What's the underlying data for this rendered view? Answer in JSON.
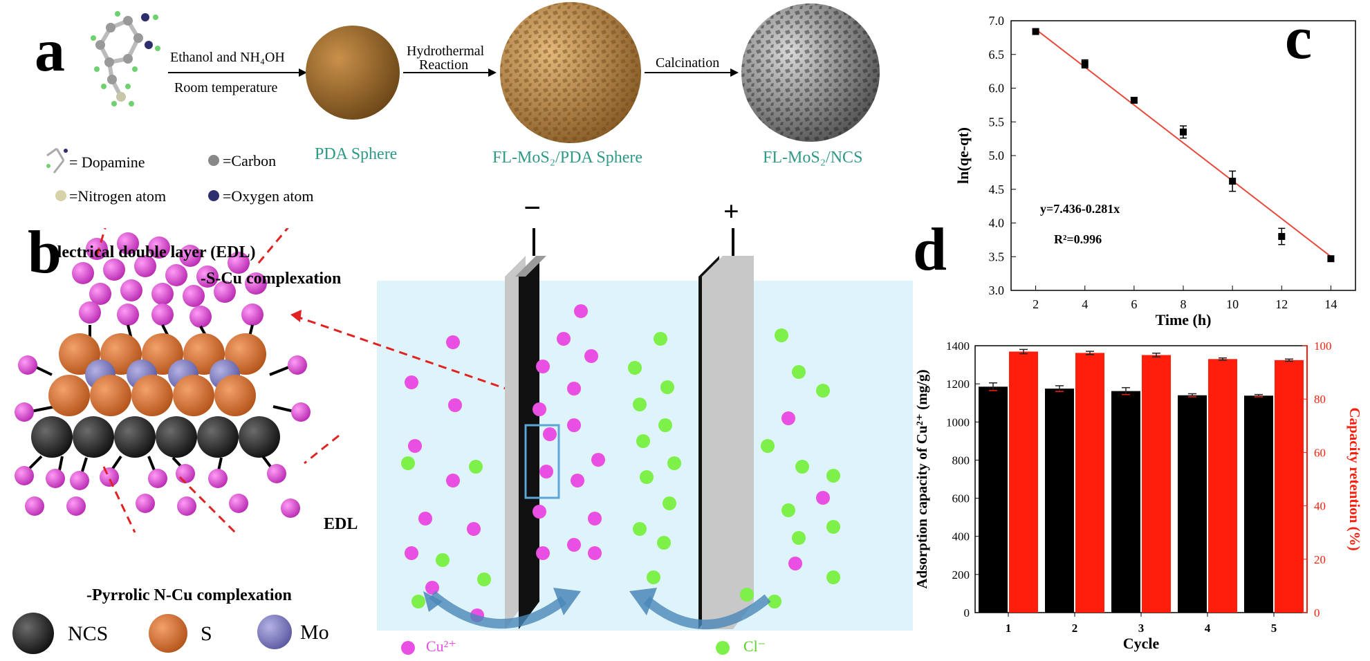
{
  "panels": {
    "a": "a",
    "b": "b",
    "c": "c",
    "d": "d"
  },
  "scheme_a": {
    "step1_top": "Ethanol and NH₄OH",
    "step1_bottom": "Room temperature",
    "step2_line1": "Hydrothermal",
    "step2_line2": "Reaction",
    "step3": "Calcination",
    "sphere1": "PDA Sphere",
    "sphere2": "FL-MoS₂/PDA Sphere",
    "sphere3": "FL-MoS₂/NCS",
    "legend": {
      "dopamine": "= Dopamine",
      "carbon": "=Carbon",
      "nitrogen": "=Nitrogen atom",
      "oxygen": "=Oxygen atom"
    },
    "colors": {
      "pda": "#9a6a2c",
      "fl_pda": "#b98a4c",
      "fl_ncs": "#8c8c8c",
      "teal": "#2e9a86"
    }
  },
  "scheme_b": {
    "edl_label": "electrical double layer (EDL)",
    "s_cu": "-S-Cu complexation",
    "edl_short": "EDL",
    "pyrrolic": "-Pyrrolic N-Cu complexation",
    "legend": {
      "ncs": "NCS",
      "s": "S",
      "mo": "Mo"
    },
    "minus": "−",
    "plus": "+",
    "cu_label": "Cu²⁺",
    "cl_label": "Cl⁻",
    "colors": {
      "cu": "#e94fe3",
      "cl": "#7df04a",
      "s": "#e0762f",
      "mo": "#8a86c8",
      "ncs": "#2b2b2b",
      "water": "#dff3fa"
    }
  },
  "chart_data": [
    {
      "type": "scatter",
      "panel": "c",
      "xlabel": "Time (h)",
      "ylabel": "ln(qe-qt)",
      "xlim": [
        1,
        15
      ],
      "ylim": [
        3.0,
        7.0
      ],
      "x_ticks": [
        "2",
        "4",
        "6",
        "8",
        "10",
        "12",
        "14"
      ],
      "y_ticks": [
        "3.0",
        "3.5",
        "4.0",
        "4.5",
        "5.0",
        "5.5",
        "6.0",
        "6.5",
        "7.0"
      ],
      "x": [
        2,
        4,
        6,
        8,
        10,
        12,
        14
      ],
      "y": [
        6.84,
        6.36,
        5.82,
        5.35,
        4.62,
        3.8,
        3.47
      ],
      "error": [
        0.03,
        0.06,
        0.04,
        0.09,
        0.15,
        0.12,
        0.04
      ],
      "fit": {
        "slope": -0.281,
        "intercept": 7.436,
        "color": "#e8483a"
      },
      "equation": "y=7.436-0.281x",
      "r2": "R²=0.996"
    },
    {
      "type": "bar",
      "panel": "d",
      "xlabel": "Cycle",
      "categories": [
        "1",
        "2",
        "3",
        "4",
        "5"
      ],
      "y_left_label": "Adsorption capacity of Cu²⁺ (mg/g)",
      "y_right_label": "Capacity retention (%)",
      "y_left_lim": [
        0,
        1400
      ],
      "y_right_lim": [
        0,
        100
      ],
      "y_left_ticks": [
        "0",
        "200",
        "400",
        "600",
        "800",
        "1000",
        "1200",
        "1400"
      ],
      "y_right_ticks": [
        "0",
        "20",
        "40",
        "60",
        "80",
        "100"
      ],
      "series": [
        {
          "axis": "left",
          "color": "#000000",
          "values": [
            1185,
            1175,
            1162,
            1140,
            1138
          ],
          "error": [
            20,
            15,
            18,
            8,
            6
          ]
        },
        {
          "axis": "right",
          "color": "#ff1d0b",
          "values": [
            97.8,
            97.3,
            96.5,
            95.0,
            94.6
          ],
          "error": [
            0.8,
            0.6,
            0.7,
            0.4,
            0.4
          ]
        }
      ]
    }
  ]
}
